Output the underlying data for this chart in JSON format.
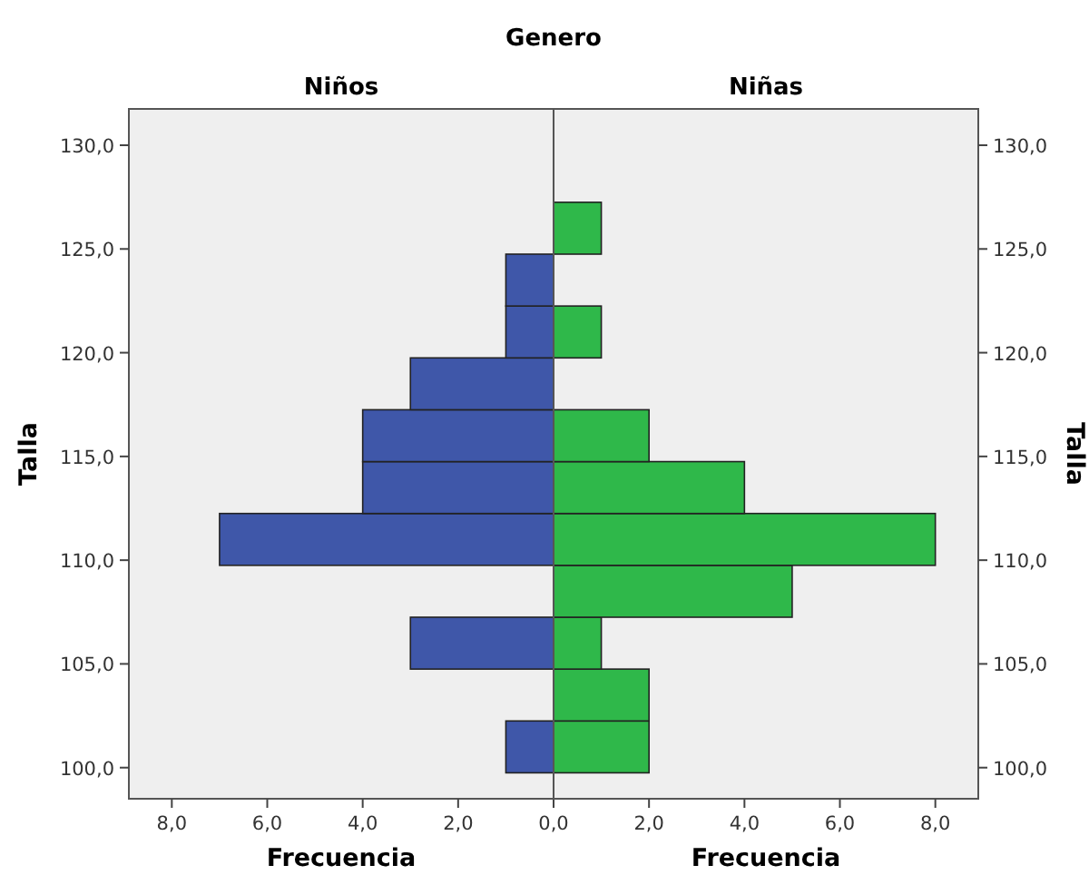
{
  "chart_data": [
    {
      "type": "histogram",
      "orientation": "horizontal",
      "title": "Niños",
      "annotations": [
        "Genero"
      ],
      "xlabel": "Frecuencia",
      "ylabel": "Talla",
      "color": "#3f57a9",
      "bins": [
        99.75,
        102.25,
        104.75,
        107.25,
        109.75,
        112.25,
        114.75,
        117.25,
        119.75,
        122.25,
        124.75,
        127.25
      ],
      "values": [
        1,
        0,
        3,
        0,
        7,
        4,
        4,
        3,
        1,
        1,
        0
      ],
      "xlim": [
        8.9,
        0
      ],
      "xticks": [
        {
          "value": 8,
          "label": "8,0"
        },
        {
          "value": 6,
          "label": "6,0"
        },
        {
          "value": 4,
          "label": "4,0"
        },
        {
          "value": 2,
          "label": "2,0"
        },
        {
          "value": 0,
          "label": "0,0"
        }
      ],
      "ylim": [
        98.5,
        131.75
      ],
      "yticks": [
        {
          "value": 100,
          "label": "100,0"
        },
        {
          "value": 105,
          "label": "105,0"
        },
        {
          "value": 110,
          "label": "110,0"
        },
        {
          "value": 115,
          "label": "115,0"
        },
        {
          "value": 120,
          "label": "120,0"
        },
        {
          "value": 125,
          "label": "125,0"
        },
        {
          "value": 130,
          "label": "130,0"
        }
      ]
    },
    {
      "type": "histogram",
      "orientation": "horizontal",
      "title": "Niñas",
      "xlabel": "Frecuencia",
      "ylabel": "Talla",
      "color": "#2fb84a",
      "bins": [
        99.75,
        102.25,
        104.75,
        107.25,
        109.75,
        112.25,
        114.75,
        117.25,
        119.75,
        122.25,
        124.75,
        127.25
      ],
      "values": [
        2,
        2,
        1,
        5,
        8,
        4,
        2,
        0,
        1,
        0,
        1
      ],
      "xlim": [
        0,
        8.9
      ],
      "xticks": [
        {
          "value": 2,
          "label": "2,0"
        },
        {
          "value": 4,
          "label": "4,0"
        },
        {
          "value": 6,
          "label": "6,0"
        },
        {
          "value": 8,
          "label": "8,0"
        }
      ],
      "ylim": [
        98.5,
        131.75
      ],
      "yticks": [
        {
          "value": 100,
          "label": "100,0"
        },
        {
          "value": 105,
          "label": "105,0"
        },
        {
          "value": 110,
          "label": "110,0"
        },
        {
          "value": 115,
          "label": "115,0"
        },
        {
          "value": 120,
          "label": "120,0"
        },
        {
          "value": 125,
          "label": "125,0"
        },
        {
          "value": 130,
          "label": "130,0"
        }
      ]
    }
  ]
}
